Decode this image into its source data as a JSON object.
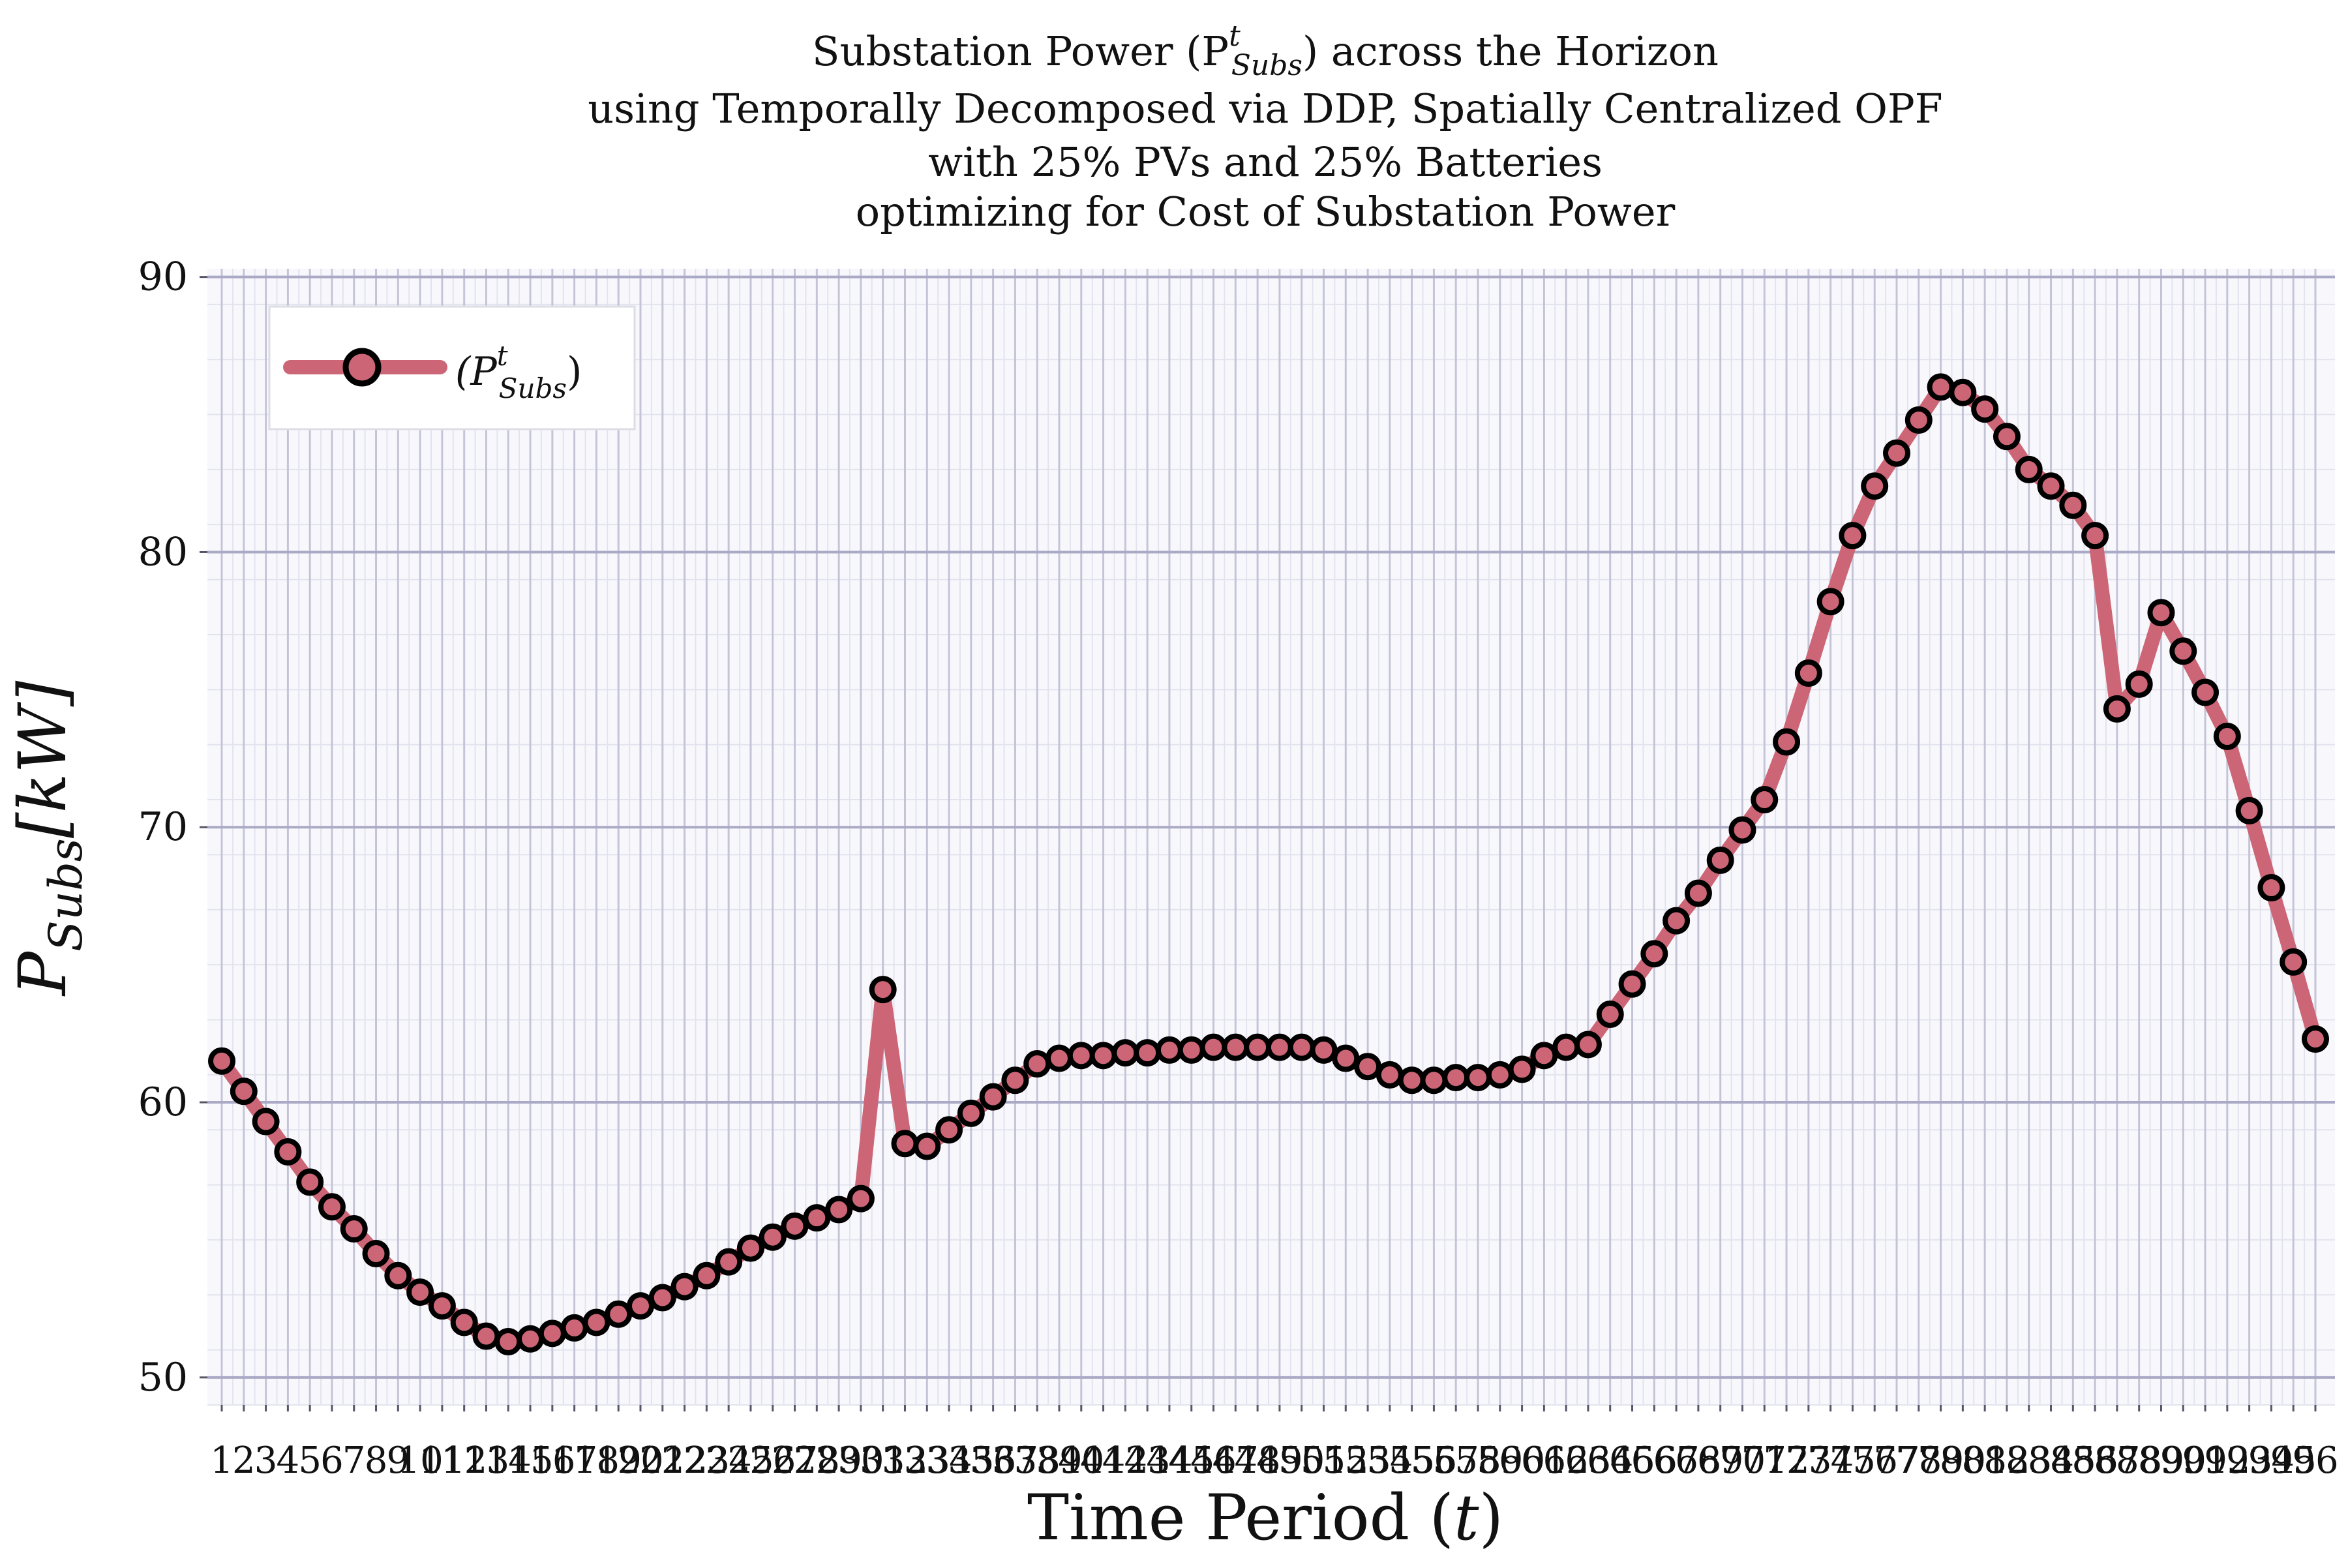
{
  "chart_data": {
    "type": "line",
    "title_lines": [
      "Substation Power (P",
      "using Temporally Decomposed via DDP, Spatially Centralized OPF",
      "with 25% PVs and 25% Batteries",
      "optimizing for Cost of Substation Power"
    ],
    "title_math": {
      "sup": "t",
      "sub": "Subs",
      "after": ") across the Horizon"
    },
    "xlabel": "Time Period (",
    "xlabel_var": "t",
    "xlabel_close": ")",
    "ylabel_base": "P",
    "ylabel_sub": "Subs",
    "ylabel_unit": "[kW]",
    "ylim": [
      49,
      90.3
    ],
    "yticks": [
      50,
      60,
      70,
      80,
      90
    ],
    "x": [
      1,
      2,
      3,
      4,
      5,
      6,
      7,
      8,
      9,
      10,
      11,
      12,
      13,
      14,
      15,
      16,
      17,
      18,
      19,
      20,
      21,
      22,
      23,
      24,
      25,
      26,
      27,
      28,
      29,
      30,
      31,
      32,
      33,
      34,
      35,
      36,
      37,
      38,
      39,
      40,
      41,
      42,
      43,
      44,
      45,
      46,
      47,
      48,
      49,
      50,
      51,
      52,
      53,
      54,
      55,
      56,
      57,
      58,
      59,
      60,
      61,
      62,
      63,
      64,
      65,
      66,
      67,
      68,
      69,
      70,
      71,
      72,
      73,
      74,
      75,
      76,
      77,
      78,
      79,
      80,
      81,
      82,
      83,
      84,
      85,
      86,
      87,
      88,
      89,
      90,
      91,
      92,
      93,
      94,
      95,
      96
    ],
    "series": [
      {
        "legend": {
          "open": "(P",
          "sup": "t",
          "sub": "Subs",
          "close": ")"
        },
        "color": "#cc6677",
        "marker_edge": "#000000",
        "values": [
          61.5,
          60.4,
          59.3,
          58.2,
          57.1,
          56.2,
          55.4,
          54.5,
          53.7,
          53.1,
          52.6,
          52.0,
          51.5,
          51.3,
          51.4,
          51.6,
          51.8,
          52.0,
          52.3,
          52.6,
          52.9,
          53.3,
          53.7,
          54.2,
          54.7,
          55.1,
          55.5,
          55.8,
          56.1,
          56.5,
          64.1,
          58.5,
          58.4,
          59.0,
          59.6,
          60.2,
          60.8,
          61.4,
          61.6,
          61.7,
          61.7,
          61.8,
          61.8,
          61.9,
          61.9,
          62.0,
          62.0,
          62.0,
          62.0,
          62.0,
          61.9,
          61.6,
          61.3,
          61.0,
          60.8,
          60.8,
          60.9,
          60.9,
          61.0,
          61.2,
          61.7,
          62.0,
          62.1,
          63.2,
          64.3,
          65.4,
          66.6,
          67.6,
          68.8,
          69.9,
          71.0,
          73.1,
          75.6,
          78.2,
          80.6,
          82.4,
          83.6,
          84.8,
          86.0,
          85.8,
          85.2,
          84.2,
          83.0,
          82.4,
          81.7,
          80.6,
          74.3,
          75.2,
          77.8,
          76.4,
          74.9,
          73.3,
          70.6,
          67.8,
          65.1,
          62.3
        ]
      }
    ],
    "grid": true,
    "legend_position": "top-left"
  }
}
